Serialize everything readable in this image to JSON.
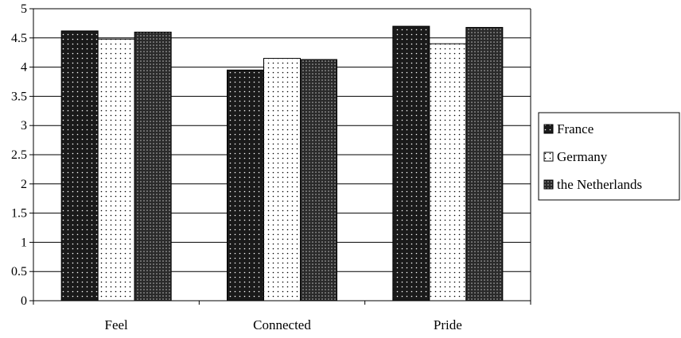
{
  "chart_data": {
    "type": "bar",
    "categories": [
      "Feel",
      "Connected",
      "Pride"
    ],
    "series": [
      {
        "name": "France",
        "values": [
          4.62,
          3.95,
          4.7
        ],
        "pattern": "dots-on-dark"
      },
      {
        "name": "Germany",
        "values": [
          4.48,
          4.15,
          4.4
        ],
        "pattern": "dots-on-light"
      },
      {
        "name": "the Netherlands",
        "values": [
          4.6,
          4.13,
          4.68
        ],
        "pattern": "dense-dots"
      }
    ],
    "yticks": [
      "0",
      "0.5",
      "1",
      "1.5",
      "2",
      "2.5",
      "3",
      "3.5",
      "4",
      "4.5",
      "5"
    ],
    "ylim": [
      0,
      5
    ],
    "grid": true,
    "legend_position": "right",
    "title": "",
    "xlabel": "",
    "ylabel": ""
  }
}
